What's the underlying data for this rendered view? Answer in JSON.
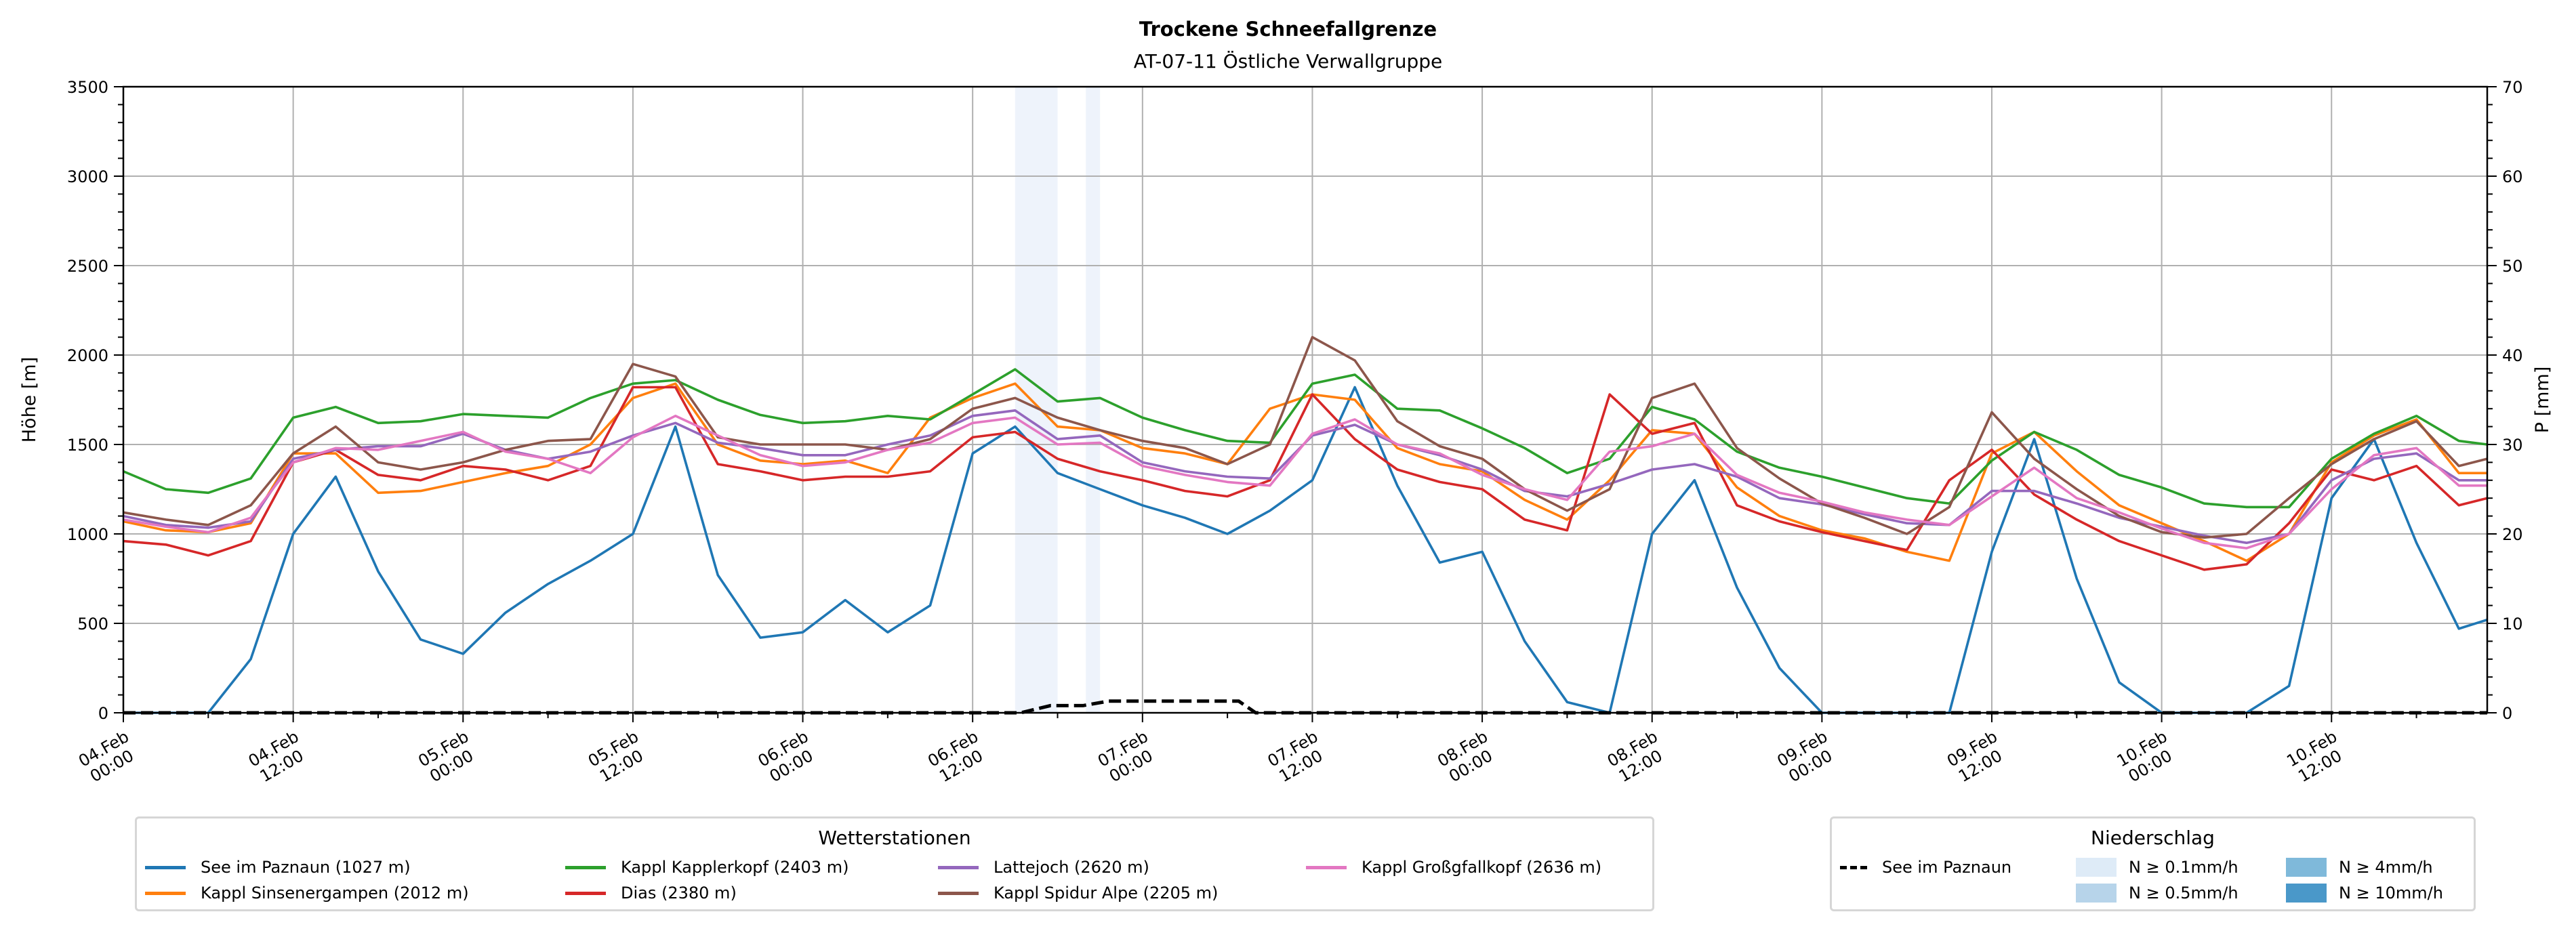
{
  "chart_data": {
    "type": "line",
    "title": "Trockene Schneefallgrenze",
    "subtitle": "AT-07-11 Östliche Verwallgruppe",
    "ylabel": "Höhe [m]",
    "y2label": "P [mm]",
    "ylim": [
      0,
      3500
    ],
    "y2lim": [
      0,
      70
    ],
    "xlim_hours": [
      0,
      167
    ],
    "x_unit": "hours since 04.Feb 00:00",
    "grid": true,
    "yticks": [
      0,
      500,
      1000,
      1500,
      2000,
      2500,
      3000,
      3500
    ],
    "y2ticks": [
      0,
      10,
      20,
      30,
      40,
      50,
      60,
      70
    ],
    "xticks": [
      {
        "h": 0,
        "l1": "04.Feb",
        "l2": "00:00"
      },
      {
        "h": 12,
        "l1": "04.Feb",
        "l2": "12:00"
      },
      {
        "h": 24,
        "l1": "05.Feb",
        "l2": "00:00"
      },
      {
        "h": 36,
        "l1": "05.Feb",
        "l2": "12:00"
      },
      {
        "h": 48,
        "l1": "06.Feb",
        "l2": "00:00"
      },
      {
        "h": 60,
        "l1": "06.Feb",
        "l2": "12:00"
      },
      {
        "h": 72,
        "l1": "07.Feb",
        "l2": "00:00"
      },
      {
        "h": 84,
        "l1": "07.Feb",
        "l2": "12:00"
      },
      {
        "h": 96,
        "l1": "08.Feb",
        "l2": "00:00"
      },
      {
        "h": 108,
        "l1": "08.Feb",
        "l2": "12:00"
      },
      {
        "h": 120,
        "l1": "09.Feb",
        "l2": "00:00"
      },
      {
        "h": 132,
        "l1": "09.Feb",
        "l2": "12:00"
      },
      {
        "h": 144,
        "l1": "10.Feb",
        "l2": "00:00"
      },
      {
        "h": 156,
        "l1": "10.Feb",
        "l2": "12:00"
      }
    ],
    "x": [
      0,
      3,
      6,
      9,
      12,
      15,
      18,
      21,
      24,
      27,
      30,
      33,
      36,
      39,
      42,
      45,
      48,
      51,
      54,
      57,
      60,
      63,
      66,
      69,
      72,
      75,
      78,
      81,
      84,
      87,
      90,
      93,
      96,
      99,
      102,
      105,
      108,
      111,
      114,
      117,
      120,
      123,
      126,
      129,
      132,
      135,
      138,
      141,
      144,
      147,
      150,
      153,
      156,
      159,
      162,
      165,
      167
    ],
    "series": [
      {
        "name": "See im Paznaun (1027 m)",
        "color": "#1f77b4",
        "values": [
          0,
          0,
          0,
          300,
          1000,
          1320,
          790,
          410,
          330,
          560,
          720,
          850,
          1000,
          1600,
          770,
          420,
          450,
          630,
          450,
          600,
          1450,
          1600,
          1340,
          1250,
          1160,
          1090,
          1000,
          1130,
          1300,
          1820,
          1270,
          840,
          900,
          400,
          60,
          0,
          1000,
          1300,
          700,
          250,
          0,
          0,
          0,
          0,
          900,
          1530,
          750,
          170,
          0,
          0,
          0,
          150,
          1200,
          1530,
          950,
          470,
          520
        ]
      },
      {
        "name": "Kappl Sinsenergampen (2012 m)",
        "color": "#ff7f0e",
        "values": [
          1070,
          1020,
          1010,
          1060,
          1450,
          1450,
          1230,
          1240,
          1290,
          1340,
          1380,
          1500,
          1760,
          1840,
          1500,
          1410,
          1390,
          1410,
          1340,
          1650,
          1760,
          1840,
          1600,
          1580,
          1480,
          1450,
          1390,
          1700,
          1780,
          1750,
          1480,
          1390,
          1350,
          1190,
          1080,
          1300,
          1580,
          1560,
          1260,
          1100,
          1020,
          975,
          900,
          850,
          1450,
          1570,
          1350,
          1160,
          1060,
          960,
          850,
          1000,
          1400,
          1550,
          1640,
          1340,
          1340
        ]
      },
      {
        "name": "Kappl Kapplerkopf (2403 m)",
        "color": "#2ca02c",
        "values": [
          1350,
          1250,
          1230,
          1310,
          1650,
          1710,
          1620,
          1630,
          1670,
          1660,
          1650,
          1760,
          1840,
          1860,
          1750,
          1665,
          1620,
          1630,
          1660,
          1640,
          1780,
          1920,
          1740,
          1760,
          1650,
          1580,
          1520,
          1510,
          1840,
          1890,
          1700,
          1690,
          1590,
          1480,
          1340,
          1420,
          1710,
          1640,
          1460,
          1370,
          1320,
          1260,
          1200,
          1170,
          1410,
          1570,
          1470,
          1330,
          1260,
          1170,
          1150,
          1150,
          1420,
          1560,
          1660,
          1520,
          1500
        ]
      },
      {
        "name": "Dias (2380 m)",
        "color": "#d62728",
        "values": [
          960,
          940,
          880,
          960,
          1400,
          1470,
          1330,
          1300,
          1380,
          1360,
          1300,
          1380,
          1820,
          1820,
          1390,
          1350,
          1300,
          1320,
          1320,
          1350,
          1540,
          1570,
          1420,
          1350,
          1300,
          1240,
          1210,
          1300,
          1780,
          1530,
          1360,
          1290,
          1250,
          1080,
          1020,
          1780,
          1560,
          1620,
          1160,
          1070,
          1010,
          960,
          910,
          1300,
          1470,
          1220,
          1080,
          960,
          880,
          800,
          830,
          1060,
          1360,
          1300,
          1380,
          1160,
          1200
        ]
      },
      {
        "name": "Lattejoch (2620 m)",
        "color": "#9467bd",
        "values": [
          1100,
          1050,
          1035,
          1070,
          1420,
          1470,
          1490,
          1490,
          1560,
          1470,
          1420,
          1460,
          1550,
          1620,
          1510,
          1480,
          1440,
          1440,
          1500,
          1550,
          1660,
          1690,
          1530,
          1550,
          1400,
          1350,
          1320,
          1310,
          1550,
          1610,
          1500,
          1440,
          1360,
          1240,
          1210,
          1280,
          1360,
          1390,
          1320,
          1200,
          1165,
          1110,
          1060,
          1050,
          1240,
          1240,
          1170,
          1090,
          1040,
          990,
          950,
          1000,
          1300,
          1420,
          1450,
          1300,
          1300
        ]
      },
      {
        "name": "Kappl Spidur Alpe (2205 m)",
        "color": "#8c564b",
        "values": [
          1120,
          1080,
          1050,
          1160,
          1450,
          1600,
          1400,
          1360,
          1400,
          1470,
          1520,
          1530,
          1950,
          1880,
          1540,
          1500,
          1500,
          1500,
          1470,
          1530,
          1700,
          1760,
          1650,
          1580,
          1520,
          1480,
          1390,
          1500,
          2100,
          1970,
          1630,
          1490,
          1420,
          1250,
          1130,
          1250,
          1760,
          1840,
          1480,
          1310,
          1170,
          1090,
          1000,
          1150,
          1680,
          1420,
          1250,
          1100,
          1010,
          980,
          1000,
          1200,
          1390,
          1530,
          1630,
          1380,
          1420
        ]
      },
      {
        "name": "Kappl Großgfallkopf (2636 m)",
        "color": "#e377c2",
        "values": [
          1080,
          1040,
          1010,
          1090,
          1400,
          1480,
          1470,
          1520,
          1570,
          1460,
          1420,
          1340,
          1540,
          1660,
          1550,
          1440,
          1380,
          1400,
          1470,
          1510,
          1620,
          1650,
          1500,
          1510,
          1380,
          1330,
          1290,
          1270,
          1560,
          1640,
          1500,
          1450,
          1330,
          1250,
          1190,
          1460,
          1490,
          1560,
          1330,
          1230,
          1180,
          1120,
          1080,
          1050,
          1210,
          1370,
          1200,
          1120,
          1030,
          950,
          920,
          1000,
          1250,
          1440,
          1480,
          1270,
          1270
        ]
      }
    ],
    "precipitation": {
      "name": "See im Paznaun",
      "axis": "right",
      "color": "#000000",
      "style": "dashed",
      "x": [
        0,
        63.4,
        65.5,
        67.8,
        69.6,
        78.8,
        80,
        167
      ],
      "values": [
        0,
        0,
        0.8,
        0.8,
        1.3,
        1.3,
        0,
        0
      ]
    },
    "precip_bands": [
      {
        "from": 63,
        "to": 66,
        "class": "N ≥ 0.1mm/h",
        "color": "#eef3fb"
      },
      {
        "from": 68,
        "to": 69,
        "class": "N ≥ 0.1mm/h",
        "color": "#eef3fb"
      }
    ],
    "legend_stations": {
      "title": "Wetterstationen",
      "placement": "bottom-left"
    },
    "legend_precip": {
      "title": "Niederschlag",
      "placement": "bottom-right",
      "items": [
        {
          "label": "See im Paznaun",
          "kind": "dashed",
          "color": "#000000"
        },
        {
          "label": "N ≥ 0.1mm/h",
          "kind": "patch",
          "color": "#deebf7"
        },
        {
          "label": "N ≥ 0.5mm/h",
          "kind": "patch",
          "color": "#b7d4ea"
        },
        {
          "label": "N ≥ 4mm/h",
          "kind": "patch",
          "color": "#7fb9da"
        },
        {
          "label": "N ≥ 10mm/h",
          "kind": "patch",
          "color": "#4a98c9"
        }
      ]
    }
  }
}
